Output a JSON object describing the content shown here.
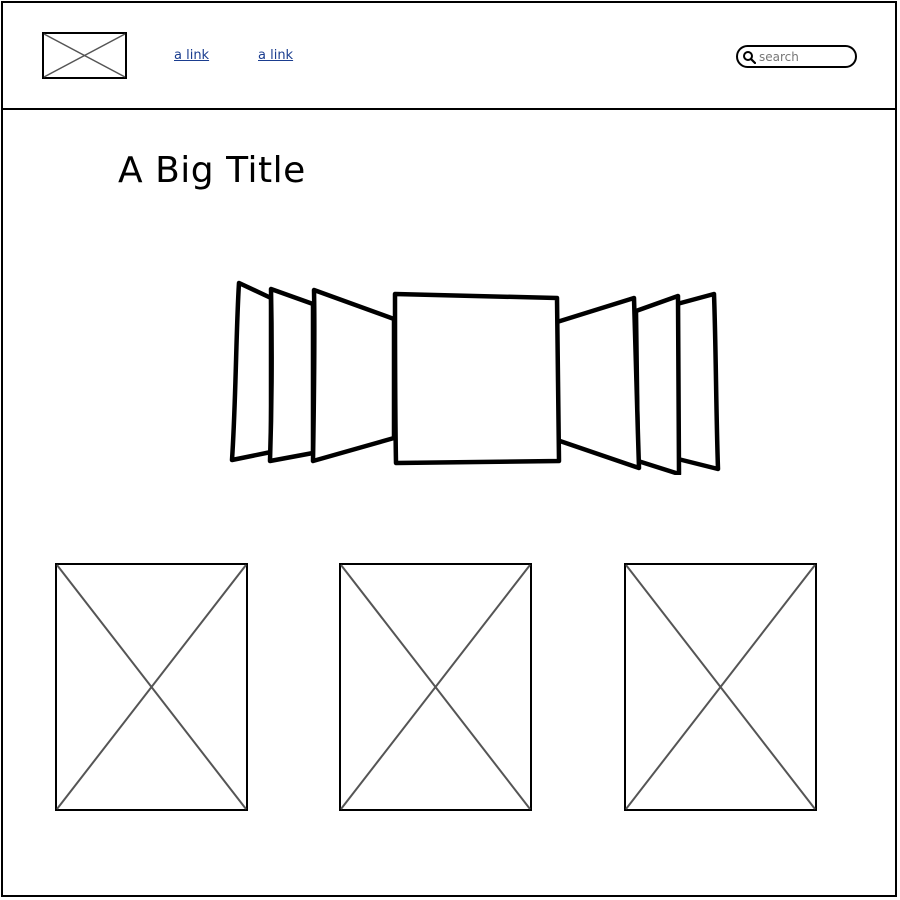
{
  "header": {
    "logo_icon": "image-placeholder-icon",
    "nav": [
      {
        "label": "a link"
      },
      {
        "label": "a link"
      }
    ],
    "search": {
      "placeholder": "search",
      "icon": "search-icon"
    }
  },
  "main": {
    "title": "A Big Title",
    "carousel": {
      "type": "cover-flow",
      "slides": 7,
      "active_index": 3
    },
    "thumbnails": [
      {
        "icon": "image-placeholder-icon"
      },
      {
        "icon": "image-placeholder-icon"
      },
      {
        "icon": "image-placeholder-icon"
      }
    ]
  },
  "colors": {
    "line": "#000000",
    "placeholder_cross": "#555555",
    "link": "#1a3d8f",
    "background": "#ffffff"
  }
}
